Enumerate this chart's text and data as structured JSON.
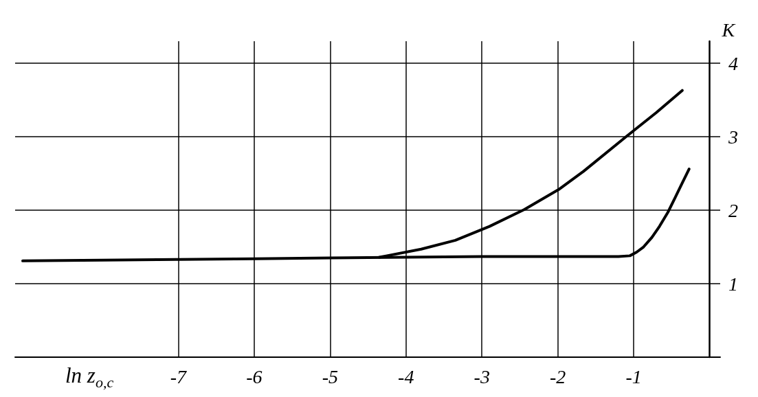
{
  "chart_data": {
    "type": "line",
    "xlabel": "ln z$_{o,c}$",
    "ylabel": "K",
    "xlim": [
      -9.15,
      0.14
    ],
    "ylim": [
      0,
      4.3
    ],
    "xticks": [
      -7,
      -6,
      -5,
      -4,
      -3,
      -2,
      -1
    ],
    "yticks": [
      1,
      2,
      3,
      4
    ],
    "grid": true,
    "series": [
      {
        "color": "#000000",
        "x": [
          -9.05,
          -8,
          -7,
          -6,
          -5,
          -4,
          -3,
          -2,
          -1.5,
          -1.2,
          -1.05,
          -0.96,
          -0.87,
          -0.76,
          -0.66,
          -0.55,
          -0.45,
          -0.36,
          -0.27
        ],
        "values": [
          1.31,
          1.32,
          1.33,
          1.34,
          1.35,
          1.36,
          1.37,
          1.37,
          1.37,
          1.37,
          1.38,
          1.43,
          1.5,
          1.63,
          1.78,
          1.97,
          2.18,
          2.37,
          2.56
        ]
      },
      {
        "color": "#000000",
        "x": [
          -4.35,
          -4.25,
          -3.8,
          -3.35,
          -2.9,
          -2.44,
          -1.99,
          -1.66,
          -1.1,
          -0.7,
          -0.36
        ],
        "values": [
          1.36,
          1.38,
          1.47,
          1.59,
          1.78,
          2.01,
          2.28,
          2.53,
          3.0,
          3.33,
          3.63
        ]
      }
    ]
  }
}
